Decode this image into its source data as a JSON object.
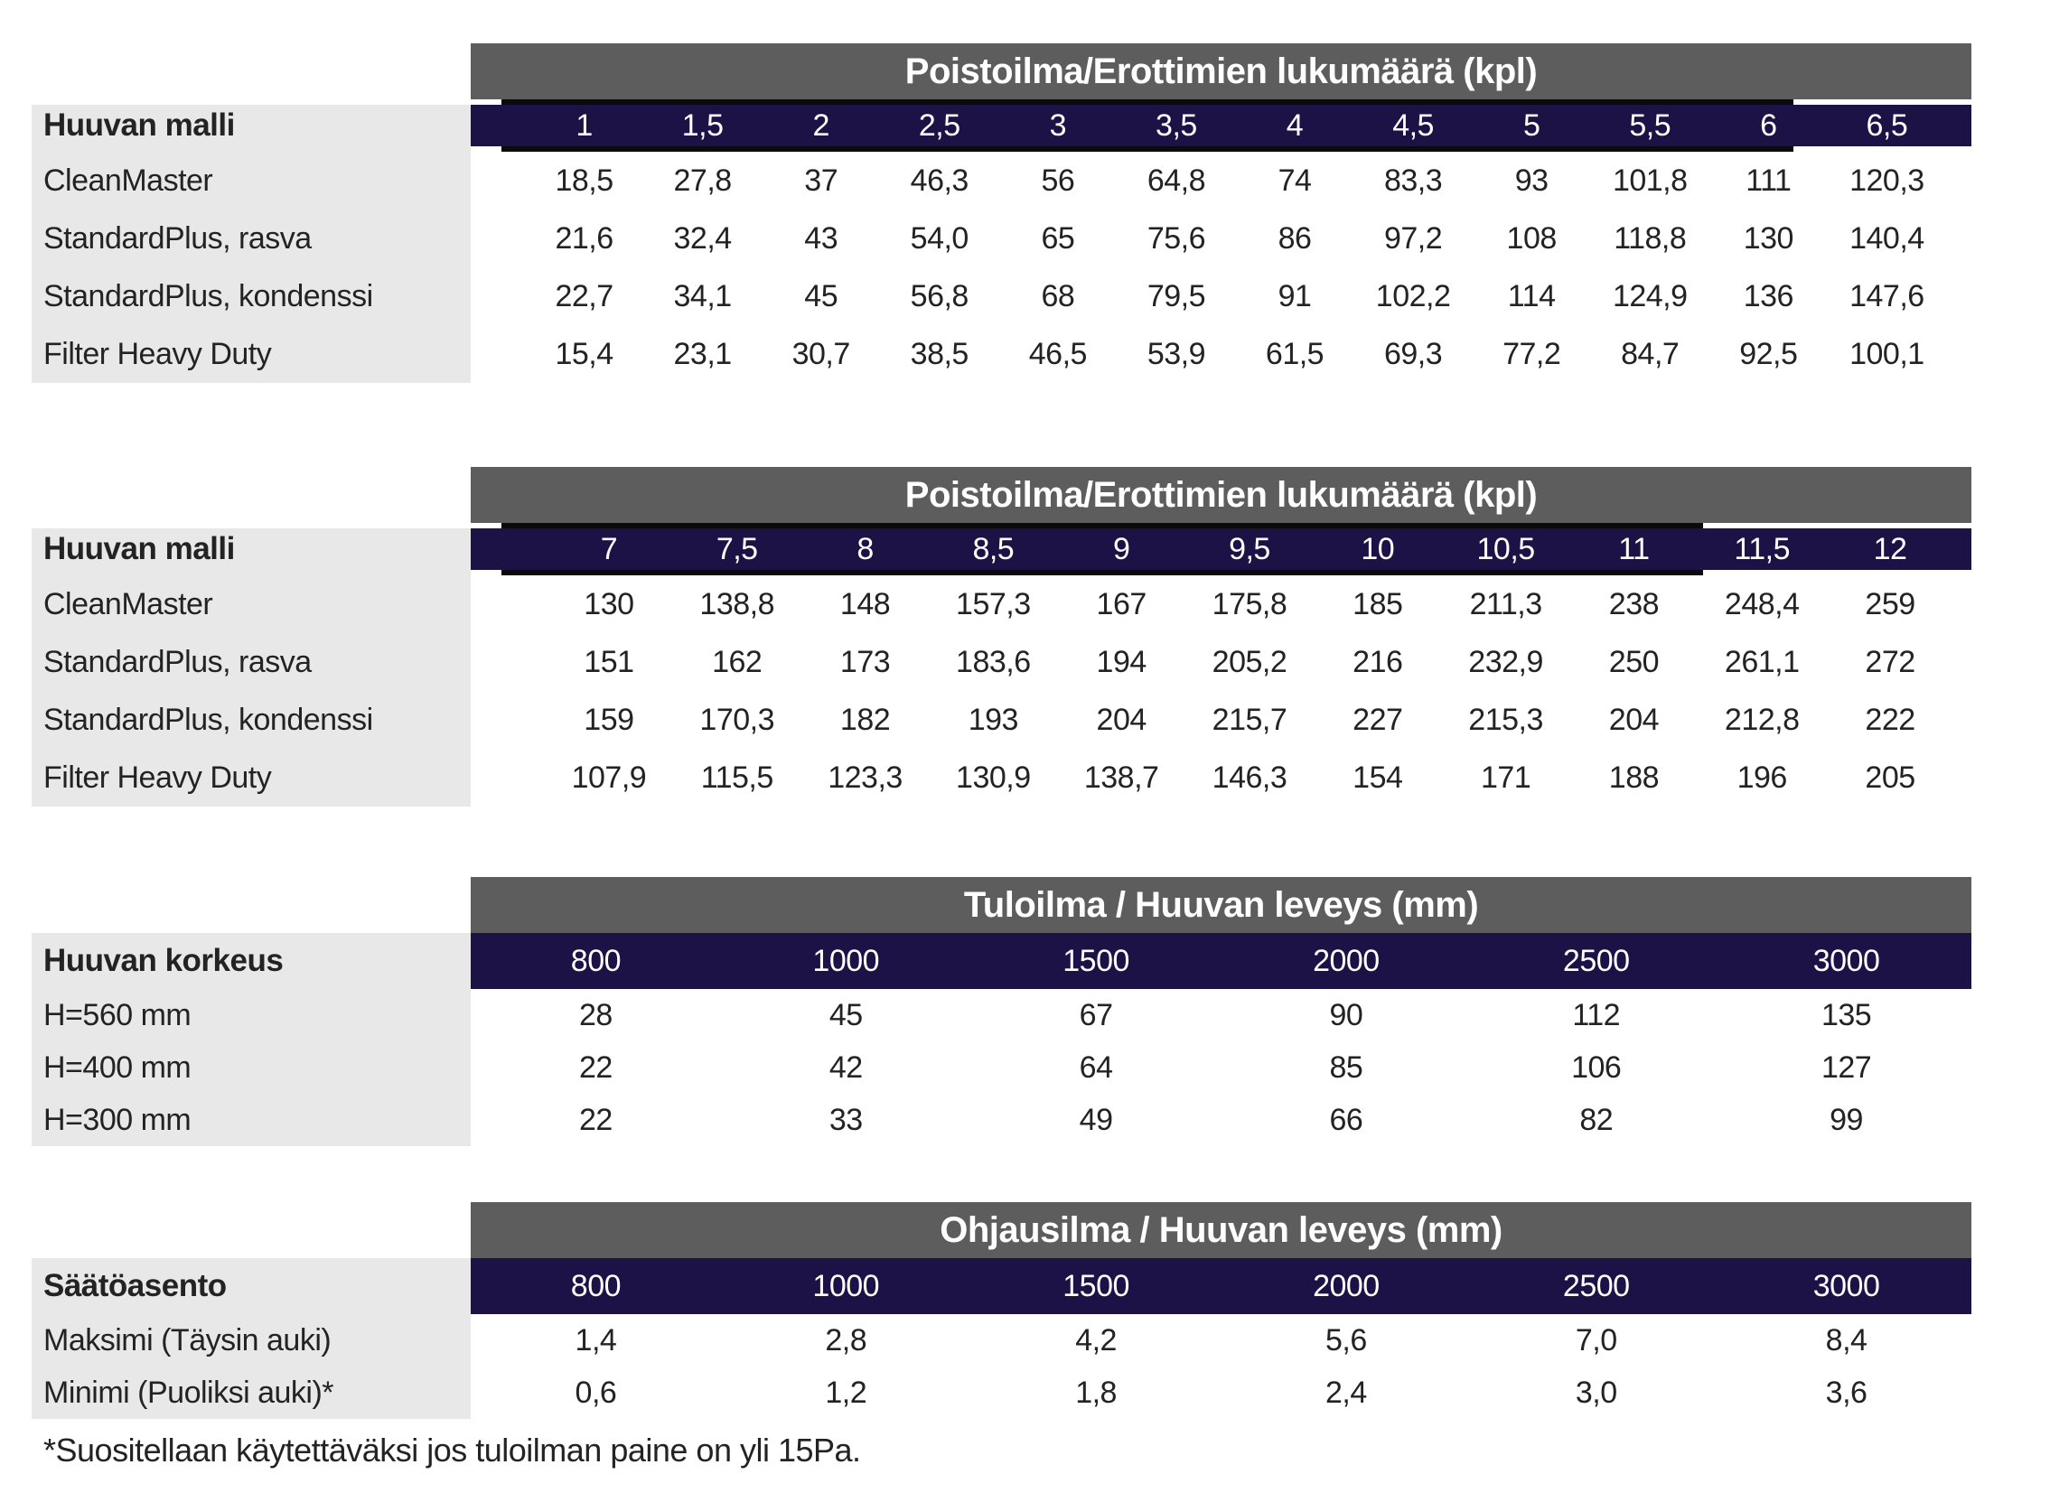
{
  "colors": {
    "title_bar": "#5d5d5d",
    "header_bar": "#1c1245",
    "label_panel": "#e8e8e8",
    "rule": "#0b0b0b",
    "text_dark": "#232323",
    "text_light": "#ffffff"
  },
  "tables": [
    {
      "title": "Poistoilma/Erottimien lukumäärä (kpl)",
      "label_header": "Huuvan malli",
      "columns": [
        "1",
        "1,5",
        "2",
        "2,5",
        "3",
        "3,5",
        "4",
        "4,5",
        "5",
        "5,5",
        "6",
        "6,5"
      ],
      "rows": [
        {
          "label": "CleanMaster",
          "values": [
            "18,5",
            "27,8",
            "37",
            "46,3",
            "56",
            "64,8",
            "74",
            "83,3",
            "93",
            "101,8",
            "111",
            "120,3"
          ]
        },
        {
          "label": "StandardPlus, rasva",
          "values": [
            "21,6",
            "32,4",
            "43",
            "54,0",
            "65",
            "75,6",
            "86",
            "97,2",
            "108",
            "118,8",
            "130",
            "140,4"
          ]
        },
        {
          "label": "StandardPlus, kondenssi",
          "values": [
            "22,7",
            "34,1",
            "45",
            "56,8",
            "68",
            "79,5",
            "91",
            "102,2",
            "114",
            "124,9",
            "136",
            "147,6"
          ]
        },
        {
          "label": "Filter Heavy Duty",
          "values": [
            "15,4",
            "23,1",
            "30,7",
            "38,5",
            "46,5",
            "53,9",
            "61,5",
            "69,3",
            "77,2",
            "84,7",
            "92,5",
            "100,1"
          ]
        }
      ]
    },
    {
      "title": "Poistoilma/Erottimien lukumäärä (kpl)",
      "label_header": "Huuvan malli",
      "columns": [
        "7",
        "7,5",
        "8",
        "8,5",
        "9",
        "9,5",
        "10",
        "10,5",
        "11",
        "11,5",
        "12"
      ],
      "rows": [
        {
          "label": "CleanMaster",
          "values": [
            "130",
            "138,8",
            "148",
            "157,3",
            "167",
            "175,8",
            "185",
            "211,3",
            "238",
            "248,4",
            "259"
          ]
        },
        {
          "label": "StandardPlus, rasva",
          "values": [
            "151",
            "162",
            "173",
            "183,6",
            "194",
            "205,2",
            "216",
            "232,9",
            "250",
            "261,1",
            "272"
          ]
        },
        {
          "label": "StandardPlus, kondenssi",
          "values": [
            "159",
            "170,3",
            "182",
            "193",
            "204",
            "215,7",
            "227",
            "215,3",
            "204",
            "212,8",
            "222"
          ]
        },
        {
          "label": "Filter Heavy Duty",
          "values": [
            "107,9",
            "115,5",
            "123,3",
            "130,9",
            "138,7",
            "146,3",
            "154",
            "171",
            "188",
            "196",
            "205"
          ]
        }
      ]
    },
    {
      "title": "Tuloilma / Huuvan leveys (mm)",
      "label_header": "Huuvan korkeus",
      "columns": [
        "800",
        "1000",
        "1500",
        "2000",
        "2500",
        "3000"
      ],
      "rows": [
        {
          "label": "H=560 mm",
          "values": [
            "28",
            "45",
            "67",
            "90",
            "112",
            "135"
          ]
        },
        {
          "label": "H=400 mm",
          "values": [
            "22",
            "42",
            "64",
            "85",
            "106",
            "127"
          ]
        },
        {
          "label": "H=300 mm",
          "values": [
            "22",
            "33",
            "49",
            "66",
            "82",
            "99"
          ]
        }
      ]
    },
    {
      "title": "Ohjausilma / Huuvan leveys (mm)",
      "label_header": "Säätöasento",
      "columns": [
        "800",
        "1000",
        "1500",
        "2000",
        "2500",
        "3000"
      ],
      "rows": [
        {
          "label": "Maksimi (Täysin auki)",
          "values": [
            "1,4",
            "2,8",
            "4,2",
            "5,6",
            "7,0",
            "8,4"
          ]
        },
        {
          "label": "Minimi (Puoliksi auki)*",
          "values": [
            "0,6",
            "1,2",
            "1,8",
            "2,4",
            "3,0",
            "3,6"
          ]
        }
      ]
    }
  ],
  "footnote": "*Suositellaan käytettäväksi jos tuloilman paine on yli 15Pa."
}
